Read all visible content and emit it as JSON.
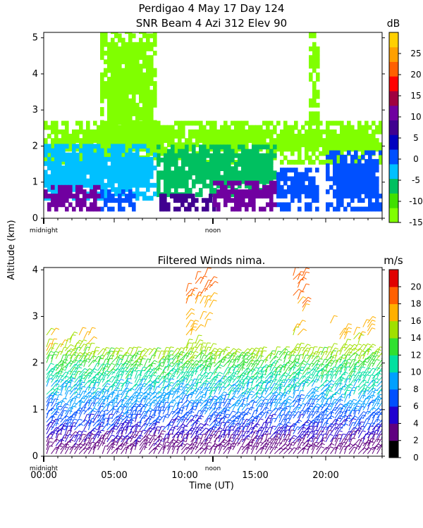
{
  "header": {
    "title": "Perdigao    4 May 17 Day 124",
    "subtitle": "SNR Beam 4 Azi 312 Elev 90"
  },
  "shared_ylabel": "Altitude (km)",
  "chart_data": [
    {
      "type": "heatmap",
      "title": "SNR Beam 4 Azi 312 Elev 90",
      "xlabel": "",
      "ylabel": "Altitude (km)",
      "xlim": [
        0,
        24
      ],
      "ylim": [
        0,
        5.15
      ],
      "yticks": [
        0,
        1,
        2,
        3,
        4,
        5
      ],
      "x_markers": [
        {
          "label": "midnight",
          "x": 0
        },
        {
          "label": "noon",
          "x": 12
        }
      ],
      "colorbar": {
        "label": "dB",
        "ticks": [
          25,
          20,
          15,
          10,
          5,
          0,
          -5,
          -10,
          -15
        ],
        "range": [
          -15,
          30
        ],
        "colors": [
          "#80ff00",
          "#40e000",
          "#00c060",
          "#00c0ff",
          "#0050ff",
          "#0000c0",
          "#400090",
          "#7000a0",
          "#a00040",
          "#ff0000",
          "#ff6000",
          "#ffa000",
          "#ffd000"
        ]
      },
      "regions": [
        {
          "x0": 0.0,
          "x1": 4.0,
          "y0": 0.2,
          "y1": 0.9,
          "dB": 12
        },
        {
          "x0": 4.0,
          "x1": 6.5,
          "y0": 0.2,
          "y1": 0.7,
          "dB": 0
        },
        {
          "x0": 8.2,
          "x1": 12.0,
          "y0": 0.2,
          "y1": 0.6,
          "dB": 8
        },
        {
          "x0": 12.0,
          "x1": 16.5,
          "y0": 0.2,
          "y1": 1.0,
          "dB": 10
        },
        {
          "x0": 16.5,
          "x1": 19.5,
          "y0": 0.2,
          "y1": 1.4,
          "dB": 2
        },
        {
          "x0": 20.0,
          "x1": 24.0,
          "y0": 0.2,
          "y1": 1.8,
          "dB": 0
        },
        {
          "x0": 0.0,
          "x1": 8.0,
          "y0": 0.5,
          "y1": 2.0,
          "dB": -4
        },
        {
          "x0": 8.0,
          "x1": 16.5,
          "y0": 0.6,
          "y1": 2.0,
          "dB": -6
        },
        {
          "x0": 0.0,
          "x1": 24.0,
          "y0": 1.5,
          "y1": 2.7,
          "dB": -12
        },
        {
          "x0": 4.0,
          "x1": 8.0,
          "y0": 2.0,
          "y1": 5.15,
          "dB": -13
        },
        {
          "x0": 18.8,
          "x1": 19.5,
          "y0": 2.0,
          "y1": 5.15,
          "dB": -13
        }
      ]
    },
    {
      "type": "scatter",
      "title": "Filtered Winds nima.",
      "xlabel": "Time (UT)",
      "ylabel": "Altitude (km)",
      "xlim": [
        0,
        24
      ],
      "ylim": [
        0,
        4.05
      ],
      "xticks": [
        "00:00",
        "05:00",
        "10:00",
        "15:00",
        "20:00"
      ],
      "yticks": [
        0,
        1,
        2,
        3,
        4
      ],
      "x_markers": [
        {
          "label": "midnight",
          "x": 0
        },
        {
          "label": "noon",
          "x": 12
        }
      ],
      "colorbar": {
        "label": "m/s",
        "ticks": [
          20,
          18,
          16,
          14,
          12,
          10,
          8,
          6,
          4,
          2,
          0
        ],
        "range": [
          0,
          22
        ],
        "colors": [
          "#000000",
          "#600080",
          "#2000d0",
          "#0050ff",
          "#00a0ff",
          "#00e0a0",
          "#30e030",
          "#a0e000",
          "#ffb000",
          "#ff6000",
          "#e00000"
        ]
      },
      "wind_profile": [
        {
          "alt": 0.2,
          "speed": 3
        },
        {
          "alt": 0.6,
          "speed": 6
        },
        {
          "alt": 1.0,
          "speed": 8
        },
        {
          "alt": 1.4,
          "speed": 10
        },
        {
          "alt": 1.8,
          "speed": 12
        },
        {
          "alt": 2.2,
          "speed": 15
        },
        {
          "alt": 2.8,
          "speed": 17
        },
        {
          "alt": 3.6,
          "speed": 19
        }
      ]
    }
  ]
}
